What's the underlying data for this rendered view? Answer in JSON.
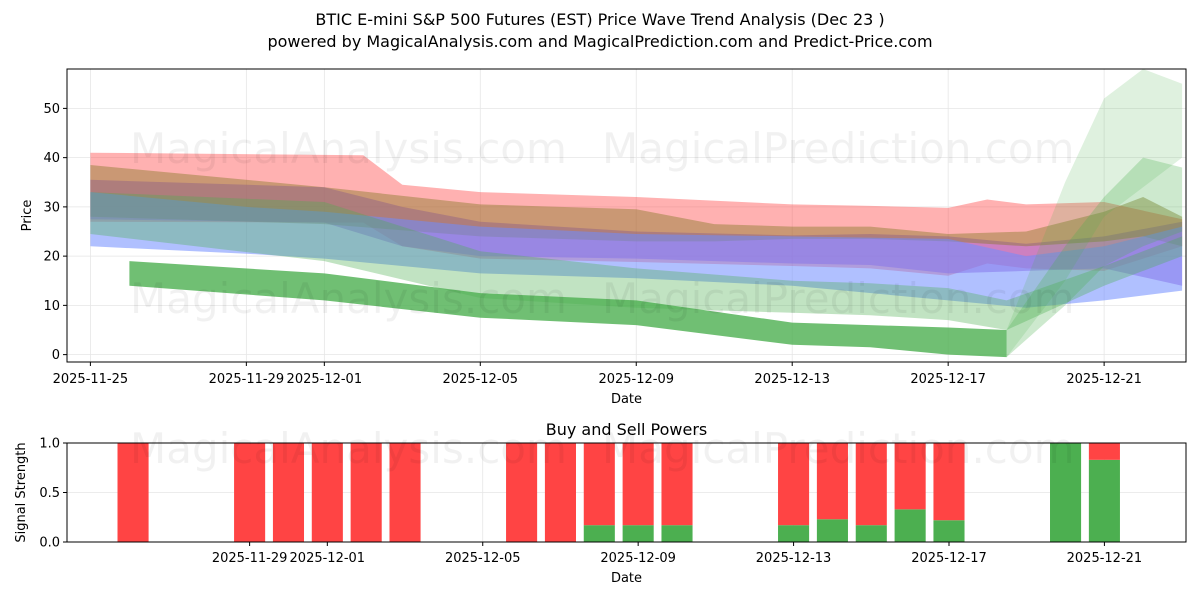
{
  "title_line1": "BTIC E-mini S&P 500 Futures (EST) Price Wave Trend Analysis (Dec 23 )",
  "title_line2": "powered by MagicalAnalysis.com and MagicalPrediction.com and Predict-Price.com",
  "watermarks": [
    "MagicalAnalysis.com",
    "MagicalPrediction.com"
  ],
  "colors": {
    "red": "#ff4444",
    "green": "#4caf50",
    "blue": "#6f8dff",
    "purple": "#9b4fd0",
    "olive": "#8a7a2a"
  },
  "chart_data": [
    {
      "type": "area",
      "title": "",
      "xlabel": "Date",
      "ylabel": "Price",
      "ylim": [
        -1.5,
        58
      ],
      "yticks": [
        0,
        10,
        20,
        30,
        40,
        50
      ],
      "xlim": [
        -0.6,
        28.1
      ],
      "xticks": [
        {
          "day": 0,
          "label": "2025-11-25"
        },
        {
          "day": 4,
          "label": "2025-11-29"
        },
        {
          "day": 6,
          "label": "2025-12-01"
        },
        {
          "day": 10,
          "label": "2025-12-05"
        },
        {
          "day": 14,
          "label": "2025-12-09"
        },
        {
          "day": 18,
          "label": "2025-12-13"
        },
        {
          "day": 22,
          "label": "2025-12-17"
        },
        {
          "day": 26,
          "label": "2025-12-21"
        }
      ],
      "series": [
        {
          "name": "red band",
          "color": "red",
          "x": [
            0,
            7,
            8,
            10,
            14,
            18,
            20,
            22,
            23,
            24,
            26,
            28
          ],
          "upper": [
            41,
            40.5,
            34.5,
            33,
            32,
            30.5,
            30.2,
            29.8,
            31.5,
            30.5,
            31,
            27.5
          ],
          "lower": [
            27,
            26.8,
            22,
            19.5,
            18.8,
            18,
            17.5,
            16,
            18.5,
            17.5,
            17,
            22
          ]
        },
        {
          "name": "purple band",
          "color": "purple",
          "x": [
            0,
            6,
            8,
            10,
            14,
            18,
            20,
            22,
            24,
            26,
            28
          ],
          "upper": [
            35.5,
            34,
            30,
            27,
            25,
            24.2,
            24.5,
            24,
            22.5,
            24,
            27
          ],
          "lower": [
            27.5,
            26.8,
            22,
            20,
            19.5,
            18.5,
            18.2,
            16.5,
            17,
            17.5,
            14
          ]
        },
        {
          "name": "olive band",
          "color": "olive",
          "x": [
            0,
            6,
            10,
            14,
            16,
            18,
            20,
            22,
            24,
            26,
            27,
            28
          ],
          "upper": [
            38.5,
            34,
            30.5,
            29.5,
            26.5,
            26,
            26,
            24.5,
            25,
            29,
            32,
            28
          ],
          "lower": [
            28,
            26.5,
            24,
            23,
            23,
            23.5,
            23.5,
            23,
            22,
            23,
            24,
            22
          ]
        },
        {
          "name": "blue band",
          "color": "blue",
          "x": [
            0,
            4,
            6,
            10,
            14,
            18,
            22,
            24,
            26,
            28
          ],
          "upper": [
            33,
            30,
            29,
            26,
            24.5,
            24,
            23.5,
            20,
            22,
            26
          ],
          "lower": [
            22,
            20.5,
            19.5,
            16.5,
            15.5,
            14,
            11,
            9.5,
            11,
            13
          ]
        },
        {
          "name": "light green band",
          "color": "green",
          "x": [
            0,
            6,
            10,
            14,
            18,
            20,
            22,
            23.5,
            26,
            28
          ],
          "upper": [
            33,
            31,
            21,
            17.5,
            15,
            14.5,
            13.5,
            11,
            18,
            24
          ],
          "lower": [
            24.5,
            19,
            11.5,
            9.5,
            8.5,
            8,
            7,
            5,
            14,
            20
          ]
        },
        {
          "name": "dark green band",
          "color": "green",
          "x": [
            1,
            6,
            10,
            14,
            18,
            20,
            22,
            23.5
          ],
          "upper": [
            19,
            16.5,
            12.5,
            11,
            6.5,
            6,
            5.5,
            5
          ],
          "lower": [
            14,
            11,
            7.5,
            6,
            2,
            1.5,
            0,
            -0.5
          ]
        },
        {
          "name": "prediction fan high",
          "color": "green",
          "x": [
            23.5,
            25,
            26,
            27,
            28
          ],
          "upper": [
            5,
            35,
            52,
            58,
            55
          ],
          "lower": [
            -0.5,
            15,
            28,
            34,
            40
          ]
        },
        {
          "name": "prediction fan mid",
          "color": "green",
          "x": [
            23.5,
            25,
            26,
            27,
            28
          ],
          "upper": [
            5,
            22,
            32,
            40,
            38
          ],
          "lower": [
            -0.5,
            10,
            18,
            22,
            25
          ]
        }
      ]
    },
    {
      "type": "bar",
      "title": "Buy and Sell Powers",
      "xlabel": "Date",
      "ylabel": "Signal Strength",
      "ylim": [
        0,
        1.0
      ],
      "yticks": [
        0.0,
        0.5,
        1.0
      ],
      "xlim": [
        -0.7,
        28.1
      ],
      "xticks": [
        {
          "day": 4,
          "label": "2025-11-29"
        },
        {
          "day": 6,
          "label": "2025-12-01"
        },
        {
          "day": 10,
          "label": "2025-12-05"
        },
        {
          "day": 14,
          "label": "2025-12-09"
        },
        {
          "day": 18,
          "label": "2025-12-13"
        },
        {
          "day": 22,
          "label": "2025-12-17"
        },
        {
          "day": 26,
          "label": "2025-12-21"
        }
      ],
      "bars": [
        {
          "day": 1,
          "buy": 0.0
        },
        {
          "day": 4,
          "buy": 0.0
        },
        {
          "day": 5,
          "buy": 0.0
        },
        {
          "day": 6,
          "buy": 0.0
        },
        {
          "day": 7,
          "buy": 0.0
        },
        {
          "day": 8,
          "buy": 0.0
        },
        {
          "day": 11,
          "buy": 0.0
        },
        {
          "day": 12,
          "buy": 0.0
        },
        {
          "day": 13,
          "buy": 0.17
        },
        {
          "day": 14,
          "buy": 0.17
        },
        {
          "day": 15,
          "buy": 0.17
        },
        {
          "day": 18,
          "buy": 0.17
        },
        {
          "day": 19,
          "buy": 0.23
        },
        {
          "day": 20,
          "buy": 0.17
        },
        {
          "day": 21,
          "buy": 0.33
        },
        {
          "day": 22,
          "buy": 0.22
        },
        {
          "day": 25,
          "buy": 1.0
        },
        {
          "day": 26,
          "buy": 0.83
        }
      ],
      "buy_color": "#4caf50",
      "sell_color": "#ff4444"
    }
  ]
}
